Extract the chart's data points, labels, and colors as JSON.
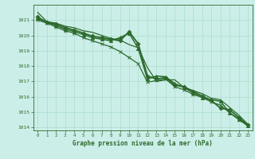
{
  "title": "Graphe pression niveau de la mer (hPa)",
  "bg_color": "#cceee8",
  "grid_color": "#aaddcc",
  "line_color": "#2d6a2d",
  "border_color": "#2d6a2d",
  "xlim": [
    -0.5,
    23.5
  ],
  "ylim": [
    1013.8,
    1022.0
  ],
  "yticks": [
    1014,
    1015,
    1016,
    1017,
    1018,
    1019,
    1020,
    1021
  ],
  "xticks": [
    0,
    1,
    2,
    3,
    4,
    5,
    6,
    7,
    8,
    9,
    10,
    11,
    12,
    13,
    14,
    15,
    16,
    17,
    18,
    19,
    20,
    21,
    22,
    23
  ],
  "series": [
    {
      "x": [
        0,
        1,
        2,
        3,
        4,
        5,
        6,
        7,
        8,
        9,
        10,
        11,
        12,
        13,
        14,
        15,
        16,
        17,
        18,
        19,
        20,
        21,
        22,
        23
      ],
      "y": [
        1021.5,
        1020.9,
        1020.8,
        1020.6,
        1020.5,
        1020.3,
        1020.2,
        1020.0,
        1019.8,
        1019.7,
        1019.4,
        1019.2,
        1017.9,
        1017.0,
        1017.1,
        1017.1,
        1016.6,
        1016.4,
        1016.2,
        1015.9,
        1015.8,
        1015.3,
        1014.8,
        1014.2
      ],
      "marker": null,
      "markersize": 0,
      "linewidth": 0.9
    },
    {
      "x": [
        0,
        1,
        2,
        3,
        4,
        5,
        6,
        7,
        8,
        9,
        10,
        11,
        12,
        13,
        14,
        15,
        16,
        17,
        18,
        19,
        20,
        21,
        22,
        23
      ],
      "y": [
        1021.2,
        1020.85,
        1020.75,
        1020.5,
        1020.35,
        1020.15,
        1019.95,
        1019.85,
        1019.75,
        1019.65,
        1020.25,
        1019.45,
        1017.35,
        1017.15,
        1017.25,
        1016.75,
        1016.65,
        1016.35,
        1016.05,
        1015.75,
        1015.25,
        1015.15,
        1014.65,
        1014.15
      ],
      "marker": "D",
      "markersize": 2.5,
      "linewidth": 1.3
    },
    {
      "x": [
        0,
        1,
        2,
        3,
        4,
        5,
        6,
        7,
        8,
        9,
        10,
        11,
        12,
        13,
        14,
        15,
        16,
        17,
        18,
        19,
        20,
        21,
        22,
        23
      ],
      "y": [
        1021.1,
        1020.85,
        1020.65,
        1020.4,
        1020.25,
        1020.05,
        1019.85,
        1019.75,
        1019.65,
        1019.85,
        1020.15,
        1019.15,
        1017.15,
        1017.35,
        1017.3,
        1016.85,
        1016.6,
        1016.25,
        1015.95,
        1015.8,
        1015.7,
        1014.95,
        1014.55,
        1014.1
      ],
      "marker": "^",
      "markersize": 3.0,
      "linewidth": 1.1
    },
    {
      "x": [
        0,
        1,
        2,
        3,
        4,
        5,
        6,
        7,
        8,
        9,
        10,
        11,
        12,
        13,
        14,
        15,
        16,
        17,
        18,
        19,
        20,
        21,
        22,
        23
      ],
      "y": [
        1021.0,
        1020.8,
        1020.55,
        1020.3,
        1020.15,
        1019.85,
        1019.65,
        1019.45,
        1019.25,
        1018.95,
        1018.55,
        1018.15,
        1016.95,
        1017.05,
        1017.15,
        1016.65,
        1016.45,
        1016.15,
        1015.95,
        1015.65,
        1015.45,
        1014.95,
        1014.5,
        1014.1
      ],
      "marker": "x",
      "markersize": 3.5,
      "linewidth": 0.9
    }
  ]
}
